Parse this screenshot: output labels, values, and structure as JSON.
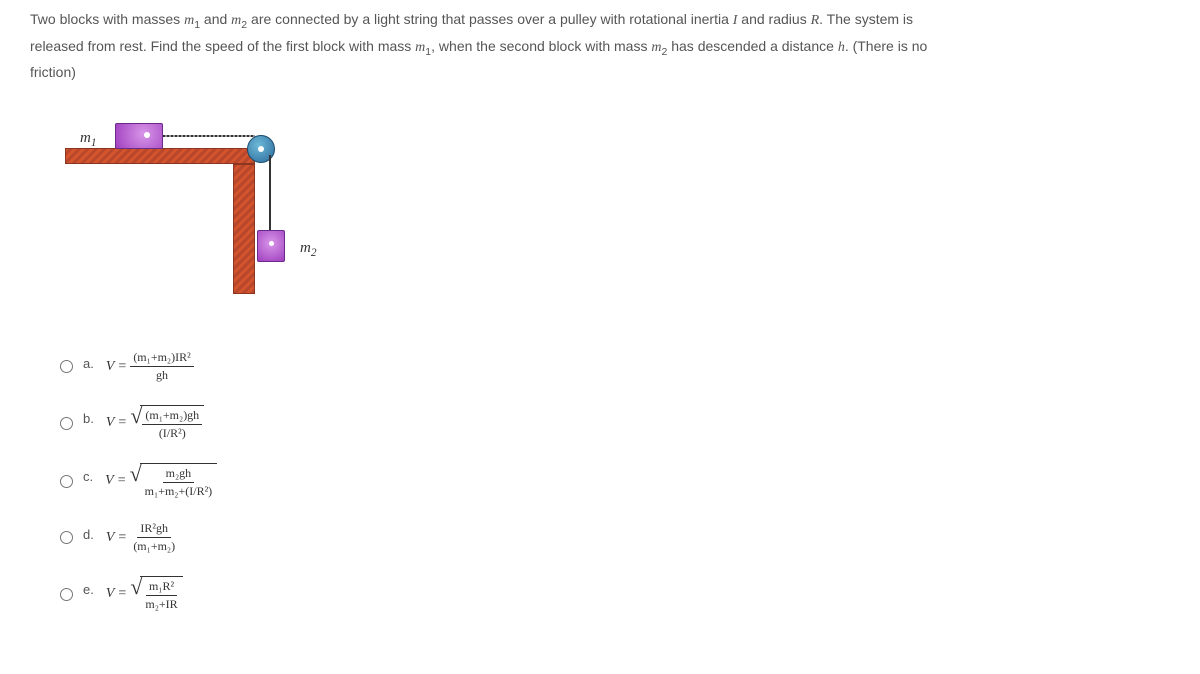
{
  "question": {
    "line1_part1": "Two blocks with masses ",
    "m1": "m",
    "m1_sub": "1",
    "line1_part2": " and ",
    "m2": "m",
    "m2_sub": "2",
    "line1_part3": " are connected by a light string that passes over a pulley with rotational inertia ",
    "I": "I",
    "line1_part4": " and radius ",
    "R": "R",
    "line1_part5": ". The system is",
    "line2_part1": "released from rest. Find the speed of the first block with mass ",
    "line2_part2": ", when the second block with mass ",
    "line2_part3": " has descended a distance ",
    "h": "h",
    "line2_part4": ". (There is no",
    "line3": "friction)"
  },
  "diagram": {
    "m1_label": "m",
    "m1_sub": "1",
    "m2_label": "m",
    "m2_sub": "2"
  },
  "options": {
    "a": {
      "letter": "a.",
      "V": "V",
      "eq": "=",
      "num": "(m₁+m₂)IR²",
      "den": "gh"
    },
    "b": {
      "letter": "b.",
      "V": "V",
      "eq": "=",
      "num": "(m₁+m₂)gh",
      "den": "(I/R²)"
    },
    "c": {
      "letter": "c.",
      "V": "V",
      "eq": "=",
      "num": "m₂gh",
      "den": "m₁+m₂+(I/R²)"
    },
    "d": {
      "letter": "d.",
      "V": "V",
      "eq": "=",
      "num": "IR²gh",
      "den": "(m₁+m₂)"
    },
    "e": {
      "letter": "e.",
      "V": "V",
      "eq": "=",
      "num": "m₁R²",
      "den": "m₂+IR"
    }
  }
}
